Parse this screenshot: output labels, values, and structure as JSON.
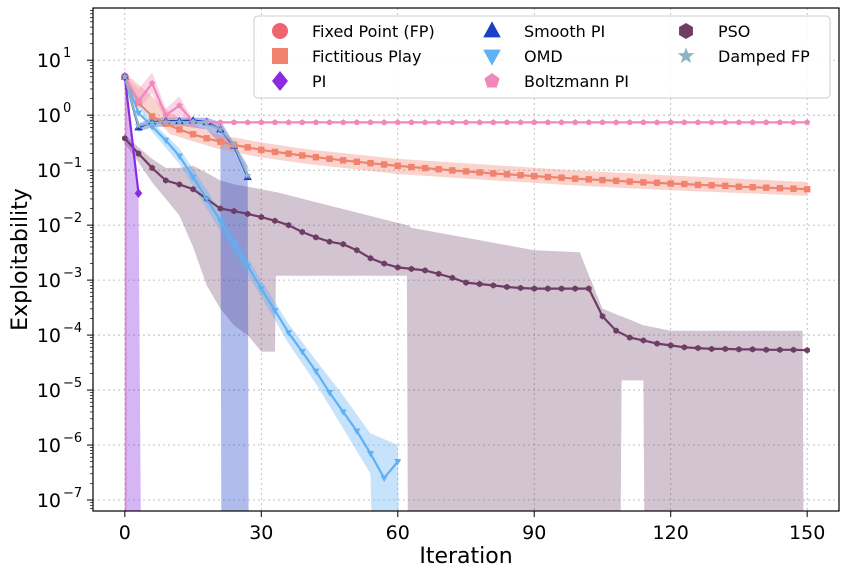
{
  "chart_data": {
    "type": "line",
    "title": "",
    "xlabel": "Iteration",
    "ylabel": "Exploitability",
    "xlim": [
      -7,
      157
    ],
    "ylim_log10": [
      -7.2,
      1.95
    ],
    "yscale": "log",
    "grid": true,
    "legend_position": "top-right",
    "legend_columns": 3,
    "x_ticks": [
      0,
      30,
      60,
      90,
      120,
      150
    ],
    "x_tick_labels": [
      "0",
      "30",
      "60",
      "90",
      "120",
      "150"
    ],
    "y_ticks": [
      1,
      0,
      -1,
      -2,
      -3,
      -4,
      -5,
      -6,
      -7
    ],
    "y_tick_labels": [
      {
        "base": "10",
        "exp": "1"
      },
      {
        "base": "10",
        "exp": "0"
      },
      {
        "base": "10",
        "exp": "−1"
      },
      {
        "base": "10",
        "exp": "−2"
      },
      {
        "base": "10",
        "exp": "−3"
      },
      {
        "base": "10",
        "exp": "−4"
      },
      {
        "base": "10",
        "exp": "−5"
      },
      {
        "base": "10",
        "exp": "−6"
      },
      {
        "base": "10",
        "exp": "−7"
      }
    ],
    "series": [
      {
        "name": "Fixed Point (FP)",
        "color": "#f0646e",
        "marker": "circle",
        "x": [
          0
        ],
        "y": [
          5.0
        ],
        "band": {
          "x": [
            0,
            0.4
          ],
          "lower": [
            1e-08,
            1e-08
          ],
          "upper": [
            5.0,
            5.0
          ]
        }
      },
      {
        "name": "Fictitious Play",
        "color": "#f0826e",
        "marker": "square",
        "x": [
          0,
          3,
          6,
          9,
          12,
          15,
          18,
          21,
          24,
          27,
          30,
          33,
          36,
          39,
          42,
          45,
          48,
          51,
          54,
          57,
          60,
          63,
          66,
          69,
          72,
          75,
          78,
          81,
          84,
          87,
          90,
          93,
          96,
          99,
          102,
          105,
          108,
          111,
          114,
          117,
          120,
          123,
          126,
          129,
          132,
          135,
          138,
          141,
          144,
          147,
          150
        ],
        "y": [
          5.0,
          1.7,
          0.95,
          0.7,
          0.55,
          0.45,
          0.38,
          0.33,
          0.29,
          0.26,
          0.235,
          0.215,
          0.2,
          0.185,
          0.172,
          0.161,
          0.151,
          0.142,
          0.134,
          0.127,
          0.12,
          0.114,
          0.109,
          0.104,
          0.099,
          0.095,
          0.091,
          0.087,
          0.084,
          0.081,
          0.078,
          0.075,
          0.073,
          0.07,
          0.068,
          0.066,
          0.064,
          0.062,
          0.06,
          0.059,
          0.057,
          0.056,
          0.054,
          0.053,
          0.052,
          0.05,
          0.049,
          0.048,
          0.047,
          0.046,
          0.045
        ],
        "band": {
          "x": [
            0,
            10,
            20,
            30,
            40,
            60,
            80,
            100,
            120,
            140,
            150
          ],
          "lower": [
            3.5,
            0.45,
            0.25,
            0.17,
            0.13,
            0.085,
            0.066,
            0.052,
            0.043,
            0.037,
            0.034
          ],
          "upper": [
            6.0,
            1.1,
            0.45,
            0.32,
            0.24,
            0.16,
            0.125,
            0.098,
            0.08,
            0.067,
            0.061
          ]
        }
      },
      {
        "name": "PI",
        "color": "#8a2be2",
        "marker": "diamond",
        "x": [
          0,
          3
        ],
        "y": [
          5.0,
          0.038
        ],
        "band": {
          "x": [
            0,
            1,
            2,
            3,
            3.5
          ],
          "lower": [
            1e-08,
            1e-08,
            1e-08,
            1e-08,
            1e-08
          ],
          "upper": [
            5.0,
            1.2,
            0.3,
            0.038,
            1e-08
          ]
        }
      },
      {
        "name": "Smooth PI",
        "color": "#1a40c8",
        "marker": "triangle-up",
        "x": [
          0,
          3,
          6,
          9,
          12,
          15,
          18,
          21,
          24,
          27
        ],
        "y": [
          5.0,
          0.6,
          0.75,
          0.78,
          0.78,
          0.8,
          0.75,
          0.55,
          0.28,
          0.075
        ],
        "band": {
          "x": [
            0,
            3,
            6,
            12,
            18,
            21,
            21.2,
            27,
            27.2
          ],
          "lower": [
            4.5,
            0.5,
            0.6,
            0.65,
            0.55,
            0.3,
            1e-08,
            1e-08,
            1e-08
          ],
          "upper": [
            5.5,
            0.7,
            0.9,
            0.92,
            0.9,
            0.75,
            0.75,
            0.12,
            1e-08
          ]
        }
      },
      {
        "name": "OMD",
        "color": "#5fb0f5",
        "marker": "triangle-down",
        "x": [
          0,
          3,
          6,
          9,
          12,
          15,
          18,
          21,
          24,
          27,
          30,
          33,
          36,
          39,
          42,
          45,
          48,
          51,
          54,
          57,
          60
        ],
        "y": [
          5.0,
          1.1,
          0.62,
          0.35,
          0.18,
          0.075,
          0.03,
          0.012,
          0.0045,
          0.0018,
          0.0007,
          0.00028,
          0.00011,
          5e-05,
          2.2e-05,
          9e-06,
          4e-06,
          1.8e-06,
          7e-07,
          2.5e-07,
          5e-07
        ],
        "band": {
          "x": [
            0,
            6,
            12,
            18,
            24,
            30,
            36,
            42,
            48,
            54,
            54.2,
            60,
            60.2
          ],
          "lower": [
            4.5,
            0.5,
            0.13,
            0.02,
            0.003,
            0.0005,
            7e-05,
            1.3e-05,
            2e-06,
            3e-07,
            1e-08,
            1e-08,
            1e-08
          ],
          "upper": [
            5.5,
            0.75,
            0.25,
            0.045,
            0.0065,
            0.001,
            0.00016,
            3.5e-05,
            8e-06,
            1.6e-06,
            1.6e-06,
            1e-06,
            1e-08
          ]
        }
      },
      {
        "name": "Boltzmann PI",
        "color": "#f088bc",
        "marker": "pentagon",
        "x": [
          0,
          3,
          6,
          9,
          12,
          15,
          18,
          21,
          24,
          27,
          30,
          33,
          36,
          39,
          42,
          45,
          48,
          51,
          54,
          57,
          60,
          63,
          66,
          69,
          72,
          75,
          78,
          81,
          84,
          87,
          90,
          93,
          96,
          99,
          102,
          105,
          108,
          111,
          114,
          117,
          120,
          123,
          126,
          129,
          132,
          135,
          138,
          141,
          144,
          147,
          150
        ],
        "y": [
          5.0,
          1.8,
          3.8,
          1.0,
          1.5,
          0.75,
          0.75,
          0.74,
          0.74,
          0.74,
          0.74,
          0.74,
          0.74,
          0.74,
          0.74,
          0.74,
          0.74,
          0.74,
          0.74,
          0.74,
          0.74,
          0.74,
          0.74,
          0.74,
          0.74,
          0.74,
          0.74,
          0.74,
          0.74,
          0.74,
          0.74,
          0.74,
          0.74,
          0.74,
          0.74,
          0.74,
          0.74,
          0.74,
          0.74,
          0.74,
          0.74,
          0.74,
          0.74,
          0.74,
          0.74,
          0.74,
          0.74,
          0.74,
          0.74,
          0.74,
          0.74
        ],
        "band": {
          "x": [
            0,
            3,
            6,
            9,
            12,
            15,
            18
          ],
          "lower": [
            4.5,
            1.2,
            2.5,
            0.8,
            1.0,
            0.7,
            0.72
          ],
          "upper": [
            5.5,
            3.0,
            6.0,
            1.3,
            2.2,
            0.8,
            0.76
          ]
        }
      },
      {
        "name": "PSO",
        "color": "#6e3d66",
        "marker": "hexagon",
        "x": [
          0,
          3,
          6,
          9,
          12,
          15,
          18,
          21,
          24,
          27,
          30,
          33,
          36,
          39,
          42,
          45,
          48,
          51,
          54,
          57,
          60,
          63,
          66,
          69,
          72,
          75,
          78,
          81,
          84,
          87,
          90,
          93,
          96,
          99,
          102,
          105,
          108,
          111,
          114,
          117,
          120,
          123,
          126,
          129,
          132,
          135,
          138,
          141,
          144,
          147,
          150
        ],
        "y": [
          0.38,
          0.2,
          0.11,
          0.065,
          0.055,
          0.045,
          0.03,
          0.02,
          0.018,
          0.016,
          0.014,
          0.012,
          0.01,
          0.0075,
          0.006,
          0.005,
          0.0045,
          0.0035,
          0.0025,
          0.002,
          0.0017,
          0.0016,
          0.0015,
          0.0013,
          0.0011,
          0.0009,
          0.00085,
          0.0008,
          0.00075,
          0.00072,
          0.0007,
          0.0007,
          0.0007,
          0.0007,
          0.0007,
          0.00022,
          0.00012,
          9e-05,
          8e-05,
          7e-05,
          6.5e-05,
          6e-05,
          5.8e-05,
          5.6e-05,
          5.6e-05,
          5.5e-05,
          5.5e-05,
          5.4e-05,
          5.4e-05,
          5.4e-05,
          5.3e-05
        ],
        "band": {
          "x": [
            0,
            3,
            6,
            9,
            12,
            15,
            18,
            21,
            24,
            27,
            30,
            33,
            33.2,
            36,
            60,
            62,
            62.2,
            63,
            90,
            100,
            105,
            105.2,
            109,
            109.2,
            114,
            114.2,
            120,
            149,
            149.2
          ],
          "lower": [
            0.3,
            0.14,
            0.06,
            0.03,
            0.015,
            0.004,
            0.0008,
            0.0003,
            0.00015,
            0.0001,
            5e-05,
            5e-05,
            0.0012,
            0.0012,
            0.0012,
            0.0012,
            1e-08,
            1e-08,
            1e-08,
            1e-08,
            1e-08,
            1e-08,
            1e-08,
            1.5e-05,
            1.5e-05,
            1e-08,
            1e-08,
            1e-08,
            1e-08
          ],
          "upper": [
            0.45,
            0.26,
            0.16,
            0.11,
            0.11,
            0.12,
            0.09,
            0.065,
            0.055,
            0.05,
            0.045,
            0.04,
            0.04,
            0.035,
            0.011,
            0.01,
            0.01,
            0.009,
            0.0035,
            0.0032,
            0.0003,
            0.0003,
            0.00022,
            0.00022,
            0.00015,
            0.00015,
            0.00012,
            0.00012,
            1e-08
          ]
        }
      },
      {
        "name": "Damped FP",
        "color": "#8eb4c4",
        "marker": "star",
        "x": [
          0,
          3,
          6,
          9,
          12,
          15,
          18,
          21,
          24,
          27
        ],
        "y": [
          5.0,
          0.65,
          0.72,
          0.75,
          0.75,
          0.75,
          0.7,
          0.55,
          0.3,
          0.08
        ],
        "band": null
      }
    ]
  }
}
